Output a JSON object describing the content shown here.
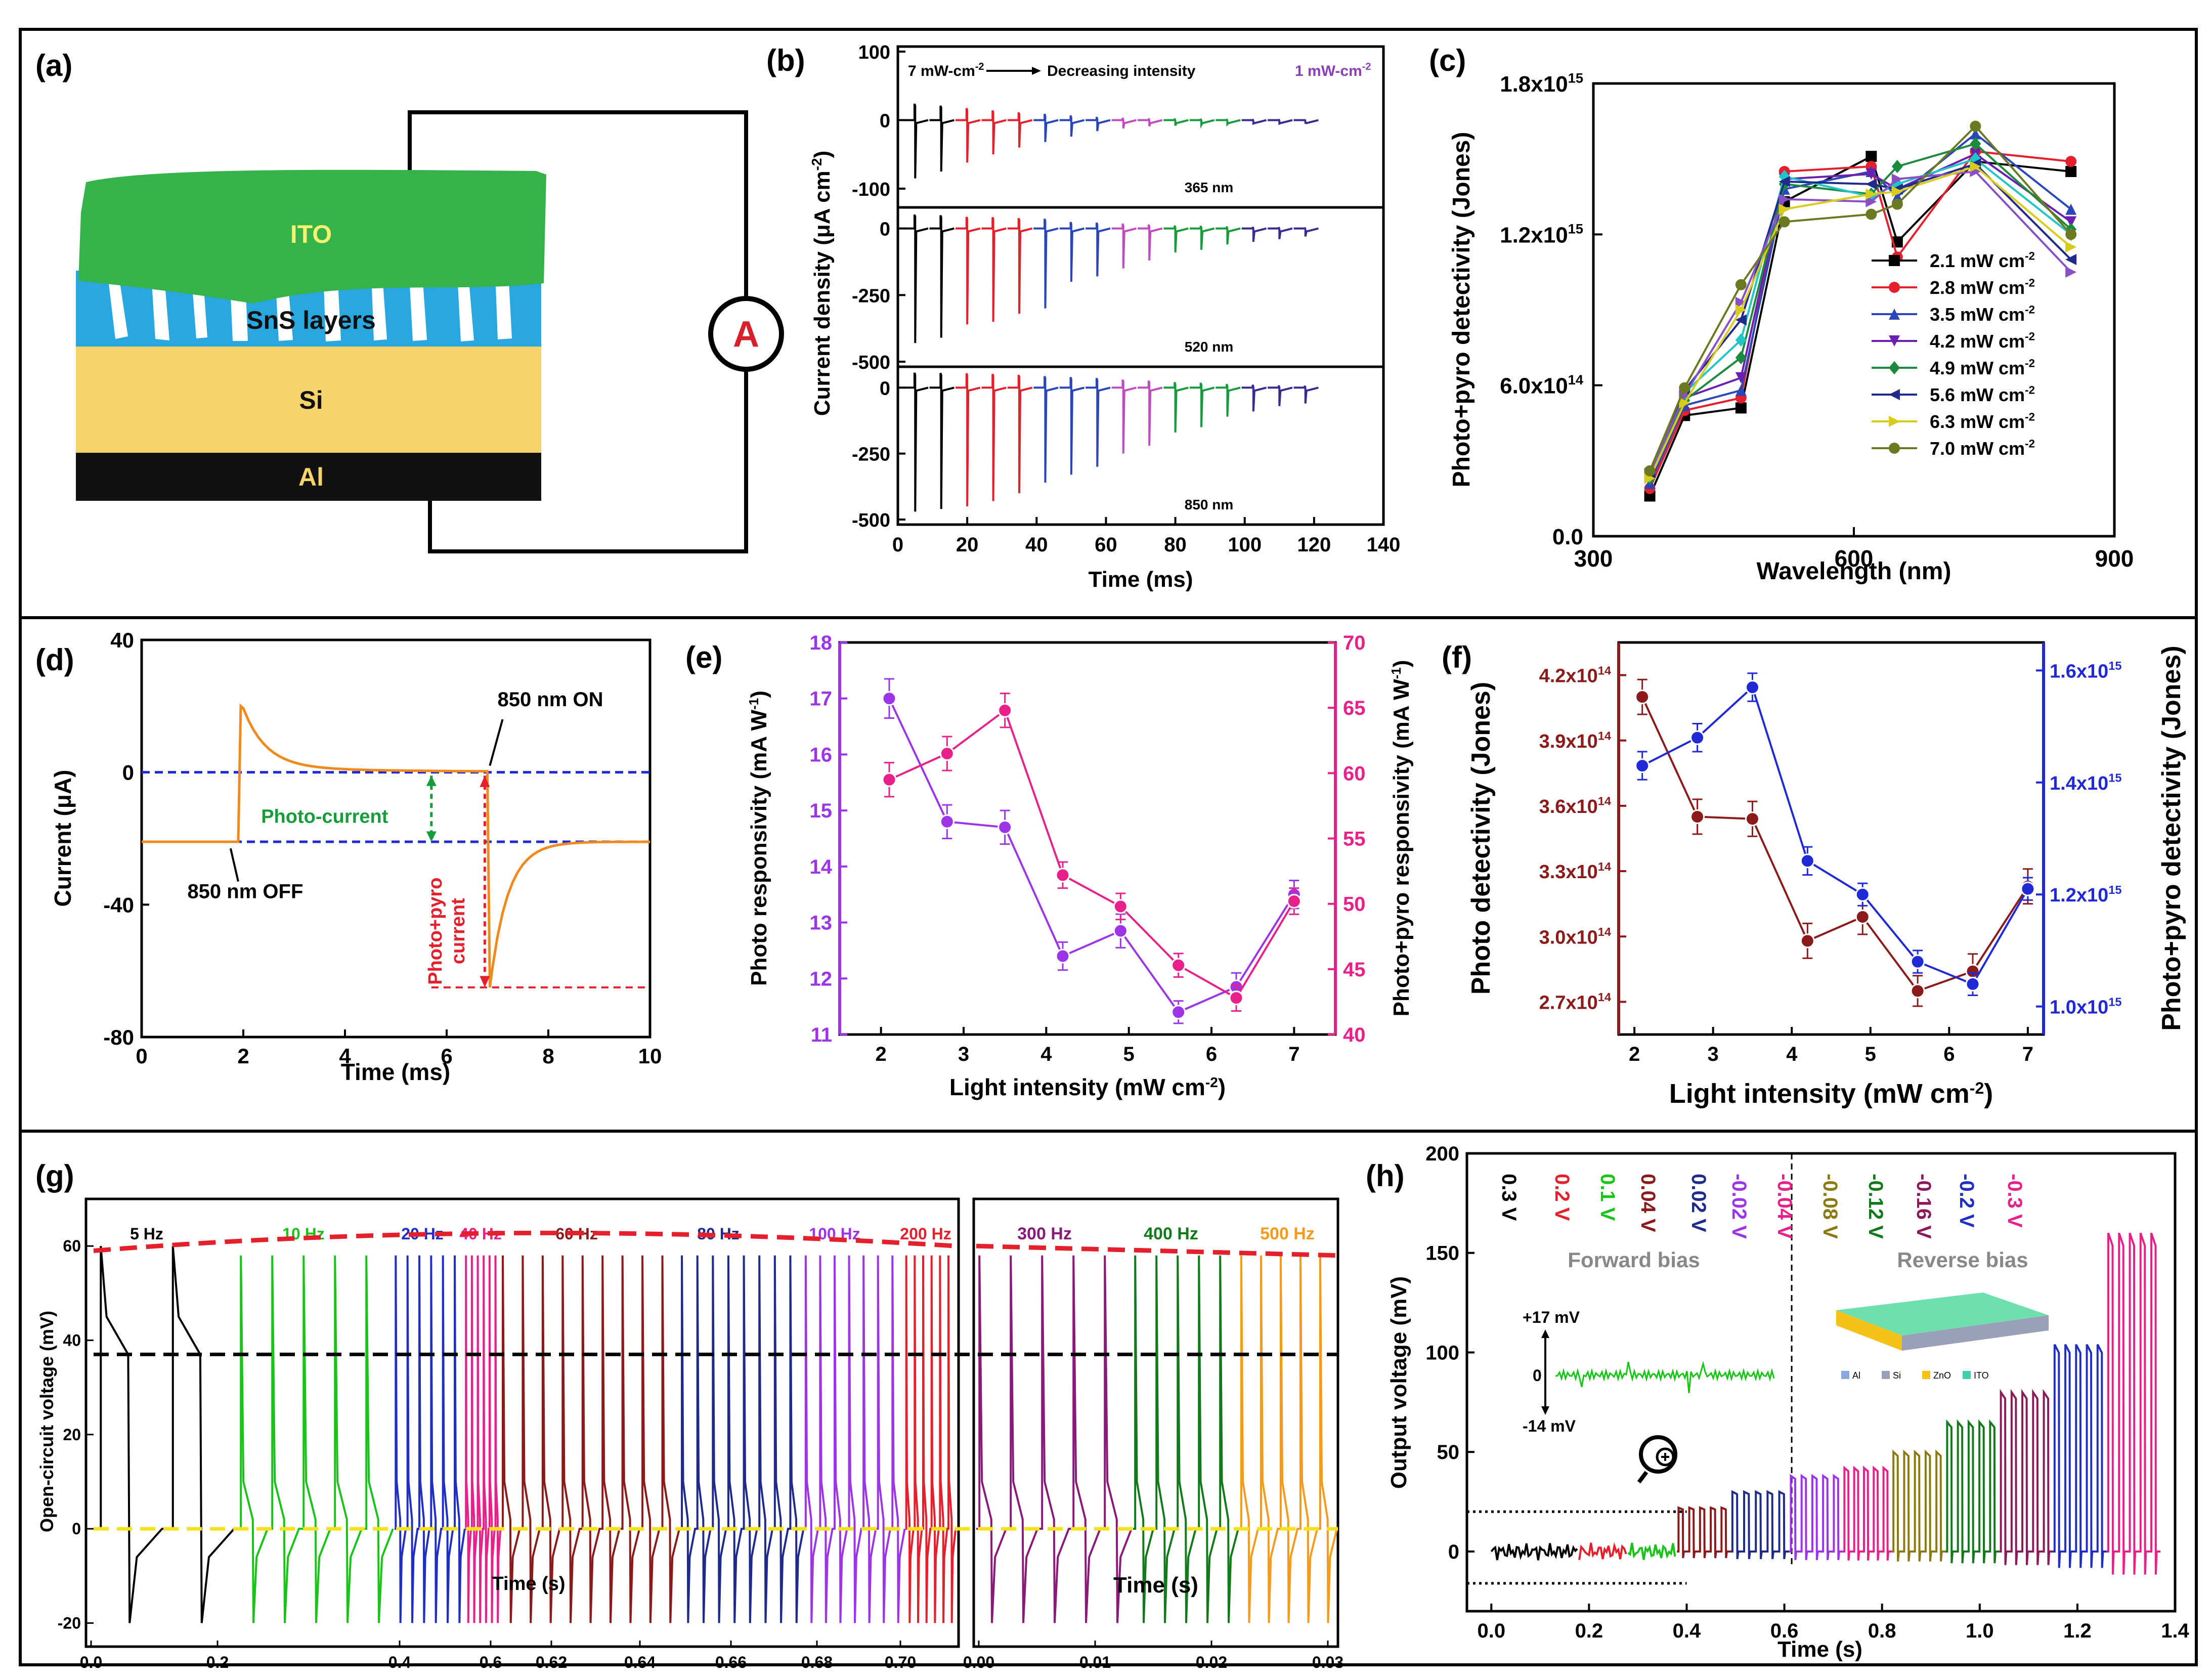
{
  "panels": {
    "a": {
      "label": "(a)",
      "layers": [
        "ITO",
        "SnS layers",
        "Si",
        "Al"
      ],
      "meter": "A",
      "colors": {
        "ito": "#36b24a",
        "sns": "#29a8e0",
        "si": "#f7d46b",
        "al": "#111111"
      }
    },
    "b": {
      "label": "(b)",
      "top_note_left": "7 mW-cm",
      "top_note_left_sup": "-2",
      "top_note_mid": "Decreasing intensity",
      "top_note_right": "1 mW-cm",
      "top_note_right_sup": "-2",
      "xlabel": "Time (ms)",
      "ylabel": "Current density (μA cm",
      "ylabel_sup": "-2",
      "ylabel_end": ")",
      "xticks": [
        "0",
        "20",
        "40",
        "60",
        "80",
        "100",
        "120",
        "140"
      ],
      "subplots": [
        {
          "wavelength": "365 nm",
          "yticks": [
            "100",
            "0",
            "-100"
          ],
          "ymin": -120,
          "ymax": 100,
          "spike_depths": [
            -85,
            -75,
            -62,
            -50,
            -40,
            -32,
            -24,
            -16,
            -12,
            -9,
            -8,
            -7,
            -6,
            -5,
            -5,
            -4
          ]
        },
        {
          "wavelength": "520 nm",
          "yticks": [
            "0",
            "-250",
            "-500"
          ],
          "ymin": -500,
          "ymax": 60,
          "spike_depths": [
            -430,
            -410,
            -360,
            -350,
            -320,
            -300,
            -200,
            -180,
            -150,
            -120,
            -90,
            -80,
            -60,
            -50,
            -40,
            -30
          ]
        },
        {
          "wavelength": "850 nm",
          "yticks": [
            "0",
            "-250",
            "-500"
          ],
          "ymin": -500,
          "ymax": 60,
          "spike_depths": [
            -470,
            -460,
            -450,
            -430,
            -400,
            -360,
            -330,
            -300,
            -250,
            -220,
            -170,
            -150,
            -110,
            -90,
            -70,
            -60
          ]
        }
      ],
      "segment_colors": [
        "#000000",
        "#e4202c",
        "#2a46b8",
        "#c04dbf",
        "#169c3b",
        "#3b2a8f",
        "#8a4fc4"
      ]
    },
    "c": {
      "label": "(c)",
      "xlabel": "Wavelength (nm)",
      "ylabel": "Photo+pyro detectivity (Jones)",
      "xticks": [
        "300",
        "600",
        "900"
      ],
      "yticks": [
        {
          "v": 0.0,
          "t": "0.0"
        },
        {
          "v": 600000000000000.0,
          "t": "6.0x10",
          "e": "14"
        },
        {
          "v": 1200000000000000.0,
          "t": "1.2x10",
          "e": "15"
        },
        {
          "v": 1800000000000000.0,
          "t": "1.8x10",
          "e": "15"
        }
      ],
      "chart_data": {
        "type": "line",
        "x": [
          365,
          405,
          470,
          520,
          620,
          650,
          740,
          850
        ],
        "xlim": [
          300,
          900
        ],
        "ylim": [
          0,
          1800000000000000.0
        ],
        "series": [
          {
            "name": "2.1 mW cm",
            "sup": "-2",
            "color": "#000000",
            "marker": "square",
            "values": [
              160000000000000.0,
              480000000000000.0,
              510000000000000.0,
              1330000000000000.0,
              1510000000000000.0,
              1170000000000000.0,
              1490000000000000.0,
              1450000000000000.0
            ]
          },
          {
            "name": "2.8 mW cm",
            "sup": "-2",
            "color": "#e4202c",
            "marker": "circle",
            "values": [
              190000000000000.0,
              500000000000000.0,
              550000000000000.0,
              1450000000000000.0,
              1470000000000000.0,
              1110000000000000.0,
              1530000000000000.0,
              1490000000000000.0
            ]
          },
          {
            "name": "3.5 mW cm",
            "sup": "-2",
            "color": "#2a46b8",
            "marker": "triangle-up",
            "values": [
              210000000000000.0,
              520000000000000.0,
              580000000000000.0,
              1380000000000000.0,
              1450000000000000.0,
              1350000000000000.0,
              1600000000000000.0,
              1300000000000000.0
            ]
          },
          {
            "name": "4.2 mW cm",
            "sup": "-2",
            "color": "#6a1fb0",
            "marker": "triangle-down",
            "values": [
              220000000000000.0,
              550000000000000.0,
              630000000000000.0,
              1420000000000000.0,
              1440000000000000.0,
              1380000000000000.0,
              1520000000000000.0,
              1250000000000000.0
            ]
          },
          {
            "name": "4.9 mW cm",
            "sup": "-2",
            "color": "#1a8a3c",
            "marker": "diamond",
            "values": [
              230000000000000.0,
              540000000000000.0,
              710000000000000.0,
              1400000000000000.0,
              1360000000000000.0,
              1470000000000000.0,
              1560000000000000.0,
              1220000000000000.0
            ]
          },
          {
            "name": "5.6 mW cm",
            "sup": "-2",
            "color": "#1fc6c6",
            "marker": "diamond",
            "values": [
              240000000000000.0,
              570000000000000.0,
              780000000000000.0,
              1430000000000000.0,
              1350000000000000.0,
              1400000000000000.0,
              1500000000000000.0,
              1200000000000000.0
            ]
          },
          {
            "name": "5.6 mW cm",
            "sup": "-2",
            "color": "#1f2a8a",
            "marker": "triangle-left",
            "values": [
              250000000000000.0,
              580000000000000.0,
              860000000000000.0,
              1410000000000000.0,
              1400000000000000.0,
              1380000000000000.0,
              1480000000000000.0,
              1100000000000000.0
            ]
          },
          {
            "name": "6.3 mW cm",
            "sup": "-2",
            "color": "#8a4fc4",
            "marker": "triangle-right",
            "values": [
              250000000000000.0,
              560000000000000.0,
              930000000000000.0,
              1340000000000000.0,
              1330000000000000.0,
              1420000000000000.0,
              1450000000000000.0,
              1050000000000000.0
            ]
          },
          {
            "name": "6.3 mW cm",
            "sup": "-2",
            "color": "#d8cc1a",
            "marker": "triangle-right",
            "values": [
              230000000000000.0,
              530000000000000.0,
              900000000000000.0,
              1300000000000000.0,
              1360000000000000.0,
              1370000000000000.0,
              1470000000000000.0,
              1150000000000000.0
            ]
          },
          {
            "name": "7.0 mW cm",
            "sup": "-2",
            "color": "#6b7a20",
            "marker": "circle",
            "values": [
              260000000000000.0,
              590000000000000.0,
              1000000000000000.0,
              1250000000000000.0,
              1280000000000000.0,
              1320000000000000.0,
              1630000000000000.0,
              1200000000000000.0
            ]
          }
        ]
      }
    },
    "d": {
      "label": "(d)",
      "xlabel": "Time (ms)",
      "ylabel": "Current (μA)",
      "xticks": [
        "0",
        "2",
        "4",
        "6",
        "8",
        "10"
      ],
      "yticks": [
        "40",
        "0",
        "-40",
        "-80"
      ],
      "annotations": {
        "on": "850 nm ON",
        "off": "850 nm OFF",
        "photo": "Photo-current",
        "pp1": "Photo+pyro",
        "pp2": "current"
      },
      "chart_data": {
        "type": "line",
        "xlim": [
          0,
          10
        ],
        "ylim": [
          -80,
          40
        ],
        "baseline_dark": -21,
        "baseline_light": 0,
        "off_time": 1.9,
        "on_time": 6.8,
        "peak_pos": 20,
        "peak_neg": -65,
        "line_color": "#f08a1c"
      }
    },
    "e": {
      "label": "(e)",
      "xlabel": "Light intensity (mW cm",
      "xlabel_sup": "-2",
      "xlabel_end": ")",
      "ylabel_left": "Photo responsivity (mA W",
      "ylabel_left_sup": "-1",
      "ylabel_left_end": ")",
      "ylabel_right": "Photo+pyro responsivity (mA W",
      "ylabel_right_sup": "-1",
      "ylabel_right_end": ")",
      "xticks": [
        "2",
        "3",
        "4",
        "5",
        "6",
        "7"
      ],
      "yticks_left": [
        "11",
        "12",
        "13",
        "14",
        "15",
        "16",
        "17",
        "18"
      ],
      "yticks_right": [
        "40",
        "45",
        "50",
        "55",
        "60",
        "65",
        "70"
      ],
      "chart_data": {
        "type": "line",
        "x": [
          2.1,
          2.8,
          3.5,
          4.2,
          4.9,
          5.6,
          6.3,
          7.0
        ],
        "xlim": [
          1.5,
          7.5
        ],
        "series": [
          {
            "name": "Photo responsivity",
            "axis": "left",
            "ylim": [
              11,
              18
            ],
            "color": "#9c35e8",
            "values": [
              17.0,
              14.8,
              14.7,
              12.4,
              12.85,
              11.4,
              11.85,
              13.5
            ],
            "err": [
              0.35,
              0.3,
              0.3,
              0.25,
              0.3,
              0.2,
              0.25,
              0.25
            ]
          },
          {
            "name": "Photo+pyro responsivity",
            "axis": "right",
            "ylim": [
              40,
              70
            ],
            "color": "#e8218a",
            "values": [
              59.5,
              61.5,
              64.8,
              52.2,
              49.8,
              45.3,
              42.8,
              50.2
            ],
            "err": [
              1.3,
              1.3,
              1.3,
              1.0,
              1.0,
              0.9,
              1.0,
              1.0
            ]
          }
        ]
      }
    },
    "f": {
      "label": "(f)",
      "xlabel": "Light intensity (mW cm",
      "xlabel_sup": "-2",
      "xlabel_end": ")",
      "ylabel_left": "Photo detectivity (Jones)",
      "ylabel_right": "Photo+pyro detectivity (Jones)",
      "xticks": [
        "2",
        "3",
        "4",
        "5",
        "6",
        "7"
      ],
      "yticks_left": [
        {
          "v": 270000000000000.0,
          "t": "2.7x10",
          "e": "14"
        },
        {
          "v": 300000000000000.0,
          "t": "3.0x10",
          "e": "14"
        },
        {
          "v": 330000000000000.0,
          "t": "3.3x10",
          "e": "14"
        },
        {
          "v": 360000000000000.0,
          "t": "3.6x10",
          "e": "14"
        },
        {
          "v": 390000000000000.0,
          "t": "3.9x10",
          "e": "14"
        },
        {
          "v": 420000000000000.0,
          "t": "4.2x10",
          "e": "14"
        }
      ],
      "yticks_right": [
        {
          "v": 1000000000000000.0,
          "t": "1.0x10",
          "e": "15"
        },
        {
          "v": 1200000000000000.0,
          "t": "1.2x10",
          "e": "15"
        },
        {
          "v": 1400000000000000.0,
          "t": "1.4x10",
          "e": "15"
        },
        {
          "v": 1600000000000000.0,
          "t": "1.6x10",
          "e": "15"
        }
      ],
      "chart_data": {
        "type": "line",
        "x": [
          2.1,
          2.8,
          3.5,
          4.2,
          4.9,
          5.6,
          6.3,
          7.0
        ],
        "xlim": [
          1.8,
          7.2
        ],
        "series": [
          {
            "name": "Photo detectivity",
            "axis": "left",
            "ylim": [
              255000000000000.0,
              435000000000000.0
            ],
            "color": "#8b1a1a",
            "values": [
              410000000000000.0,
              355000000000000.0,
              354000000000000.0,
              298000000000000.0,
              309000000000000.0,
              275000000000000.0,
              284000000000000.0,
              323000000000000.0
            ],
            "err": [
              8000000000000.0,
              8000000000000.0,
              8000000000000.0,
              8000000000000.0,
              8000000000000.0,
              7000000000000.0,
              8000000000000.0,
              8000000000000.0
            ]
          },
          {
            "name": "Photo+pyro detectivity",
            "axis": "right",
            "ylim": [
              950000000000000.0,
              1650000000000000.0
            ],
            "color": "#1f2ad6",
            "values": [
              1430000000000000.0,
              1480000000000000.0,
              1570000000000000.0,
              1260000000000000.0,
              1200000000000000.0,
              1080000000000000.0,
              1040000000000000.0,
              1210000000000000.0
            ],
            "err": [
              25000000000000.0,
              25000000000000.0,
              25000000000000.0,
              25000000000000.0,
              20000000000000.0,
              20000000000000.0,
              20000000000000.0,
              20000000000000.0
            ]
          }
        ]
      }
    },
    "g": {
      "label": "(g)",
      "ylabel": "Open-circuit voltage (mV)",
      "xlabel": "Time (s)",
      "xlabel2": "Time (s)",
      "yticks": [
        "60",
        "40",
        "20",
        "0",
        "-20"
      ],
      "xticks_left": [
        "0.0",
        "0.2",
        "0.4",
        "0.6",
        "0.62",
        "0.64",
        "0.66",
        "0.68",
        "0.70"
      ],
      "xticks_right": [
        "0.00",
        "0.01",
        "0.02",
        "0.03"
      ],
      "freqs_left": [
        {
          "t": "5 Hz",
          "c": "#000000"
        },
        {
          "t": "10 Hz",
          "c": "#18c418"
        },
        {
          "t": "20 Hz",
          "c": "#1f2fc4"
        },
        {
          "t": "40 Hz",
          "c": "#e8218a"
        },
        {
          "t": "60 Hz",
          "c": "#8b1a1a"
        },
        {
          "t": "80 Hz",
          "c": "#1f2a8a"
        },
        {
          "t": "100 Hz",
          "c": "#9c35e8"
        },
        {
          "t": "200 Hz",
          "c": "#e4202c"
        }
      ],
      "freqs_right": [
        {
          "t": "300 Hz",
          "c": "#8a1a7a"
        },
        {
          "t": "400 Hz",
          "c": "#127a1a"
        },
        {
          "t": "500 Hz",
          "c": "#f59a1a"
        }
      ],
      "chart_data": {
        "type": "line",
        "ylim": [
          -25,
          70
        ],
        "peak_envelope": 60,
        "pyro_level": 37,
        "zero_level": 0,
        "neg_spike": -20
      }
    },
    "h": {
      "label": "(h)",
      "ylabel": "Output voltage (mV)",
      "xlabel": "Time (s)",
      "xticks": [
        "0.0",
        "0.2",
        "0.4",
        "0.6",
        "0.8",
        "1.0",
        "1.2",
        "1.4"
      ],
      "yticks": [
        "0",
        "50",
        "100",
        "150",
        "200"
      ],
      "forward_label": "Forward bias",
      "reverse_label": "Reverse bias",
      "inset_top": "+17 mV",
      "inset_zero": "0",
      "inset_bottom": "-14 mV",
      "legend": [
        "Al",
        "Si",
        "ZnO",
        "ITO"
      ],
      "bias_labels": [
        {
          "t": "0.3 V",
          "c": "#000000"
        },
        {
          "t": "0.2 V",
          "c": "#e4202c"
        },
        {
          "t": "0.1 V",
          "c": "#18c418"
        },
        {
          "t": "0.04 V",
          "c": "#8b1a1a"
        },
        {
          "t": "0.02 V",
          "c": "#1f2a8a"
        },
        {
          "t": "-0.02 V",
          "c": "#9c35e8"
        },
        {
          "t": "-0.04 V",
          "c": "#e8218a"
        },
        {
          "t": "-0.08 V",
          "c": "#8a7a10"
        },
        {
          "t": "-0.12 V",
          "c": "#127a1a"
        },
        {
          "t": "-0.16 V",
          "c": "#8a1a5a"
        },
        {
          "t": "-0.2 V",
          "c": "#1f2fc4"
        },
        {
          "t": "-0.3 V",
          "c": "#e8218a"
        }
      ],
      "chart_data": {
        "type": "line",
        "xlim": [
          -0.05,
          1.4
        ],
        "ylim": [
          -30,
          200
        ],
        "segments": [
          {
            "bias": "0.3 V",
            "x0": 0.0,
            "x1": 0.18,
            "amp": 0,
            "color": "#000000"
          },
          {
            "bias": "0.2 V",
            "x0": 0.18,
            "x1": 0.28,
            "amp": 0,
            "color": "#e4202c"
          },
          {
            "bias": "0.1 V",
            "x0": 0.28,
            "x1": 0.38,
            "amp": 0,
            "color": "#18c418"
          },
          {
            "bias": "0.04 V",
            "x0": 0.38,
            "x1": 0.49,
            "amp": 22,
            "color": "#8b1a1a"
          },
          {
            "bias": "0.02 V",
            "x0": 0.49,
            "x1": 0.61,
            "amp": 30,
            "color": "#1f2a8a"
          },
          {
            "bias": "-0.02 V",
            "x0": 0.61,
            "x1": 0.72,
            "amp": 38,
            "color": "#9c35e8"
          },
          {
            "bias": "-0.04 V",
            "x0": 0.72,
            "x1": 0.82,
            "amp": 42,
            "color": "#e8218a"
          },
          {
            "bias": "-0.08 V",
            "x0": 0.82,
            "x1": 0.93,
            "amp": 50,
            "color": "#8a7a10"
          },
          {
            "bias": "-0.12 V",
            "x0": 0.93,
            "x1": 1.04,
            "amp": 65,
            "color": "#127a1a"
          },
          {
            "bias": "-0.16 V",
            "x0": 1.04,
            "x1": 1.15,
            "amp": 80,
            "color": "#8a1a5a"
          },
          {
            "bias": "-0.2 V",
            "x0": 1.15,
            "x1": 1.26,
            "amp": 104,
            "color": "#1f2fc4"
          },
          {
            "bias": "-0.3 V",
            "x0": 1.26,
            "x1": 1.37,
            "amp": 160,
            "color": "#e8218a"
          }
        ]
      }
    }
  }
}
